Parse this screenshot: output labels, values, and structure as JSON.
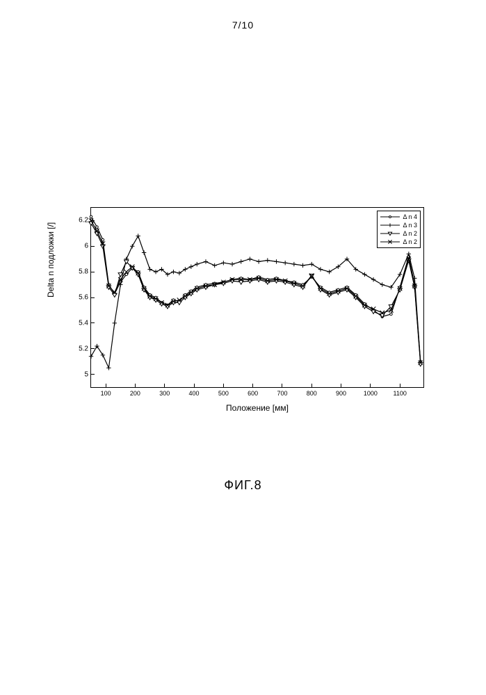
{
  "page_number": "7/10",
  "figure_caption": "ФИГ.8",
  "chart": {
    "type": "line",
    "xlabel": "Положение [мм]",
    "ylabel": "Delta n подложки [/]",
    "xlim": [
      50,
      1180
    ],
    "ylim": [
      4.9,
      6.3
    ],
    "xticks": [
      100,
      200,
      300,
      400,
      500,
      600,
      700,
      800,
      900,
      1000,
      1100
    ],
    "yticks": [
      5.0,
      5.2,
      5.4,
      5.6,
      5.8,
      6.0,
      6.2
    ],
    "ytick_labels": [
      "5",
      "5.2",
      "5.4",
      "5.6",
      "5.8",
      "6",
      "6.2"
    ],
    "background_color": "#ffffff",
    "axis_color": "#000000",
    "tick_fontsize": 10,
    "label_fontsize": 12,
    "line_width": 1.2,
    "marker_size": 3.2,
    "legend": {
      "position": "top-right",
      "border_color": "#000000",
      "fontsize": 9,
      "items": [
        {
          "label": "Δ n 4",
          "marker": "circle"
        },
        {
          "label": "Δ n 3",
          "marker": "plus"
        },
        {
          "label": "Δ n 2",
          "marker": "triangle-down"
        },
        {
          "label": "Δ n 2",
          "marker": "cross"
        }
      ]
    },
    "series": [
      {
        "name": "dn4",
        "marker": "circle",
        "color": "#000000",
        "x": [
          50,
          70,
          90,
          110,
          130,
          150,
          170,
          190,
          210,
          230,
          250,
          270,
          290,
          310,
          330,
          350,
          370,
          390,
          410,
          440,
          470,
          500,
          530,
          560,
          590,
          620,
          650,
          680,
          710,
          740,
          770,
          800,
          830,
          860,
          890,
          920,
          950,
          980,
          1010,
          1040,
          1070,
          1100,
          1130,
          1150,
          1170
        ],
        "y": [
          6.23,
          6.15,
          6.05,
          5.7,
          5.63,
          5.72,
          5.78,
          5.83,
          5.8,
          5.68,
          5.62,
          5.6,
          5.56,
          5.54,
          5.58,
          5.57,
          5.62,
          5.65,
          5.68,
          5.7,
          5.71,
          5.72,
          5.74,
          5.75,
          5.74,
          5.76,
          5.74,
          5.75,
          5.73,
          5.72,
          5.7,
          5.76,
          5.68,
          5.64,
          5.66,
          5.68,
          5.62,
          5.55,
          5.5,
          5.45,
          5.47,
          5.68,
          5.92,
          5.7,
          5.1
        ]
      },
      {
        "name": "dn3",
        "marker": "plus",
        "color": "#000000",
        "x": [
          50,
          70,
          90,
          110,
          130,
          150,
          170,
          190,
          210,
          230,
          250,
          270,
          290,
          310,
          330,
          350,
          370,
          390,
          410,
          440,
          470,
          500,
          530,
          560,
          590,
          620,
          650,
          680,
          710,
          740,
          770,
          800,
          830,
          860,
          890,
          920,
          950,
          980,
          1010,
          1040,
          1070,
          1100,
          1130,
          1150,
          1170
        ],
        "y": [
          5.14,
          5.22,
          5.15,
          5.05,
          5.4,
          5.7,
          5.9,
          6.0,
          6.08,
          5.95,
          5.82,
          5.8,
          5.82,
          5.78,
          5.8,
          5.79,
          5.82,
          5.84,
          5.86,
          5.88,
          5.85,
          5.87,
          5.86,
          5.88,
          5.9,
          5.88,
          5.89,
          5.88,
          5.87,
          5.86,
          5.85,
          5.86,
          5.82,
          5.8,
          5.84,
          5.9,
          5.82,
          5.78,
          5.74,
          5.7,
          5.68,
          5.78,
          5.94,
          5.75,
          5.09
        ]
      },
      {
        "name": "dn2a",
        "marker": "triangle-down",
        "color": "#000000",
        "x": [
          50,
          70,
          90,
          110,
          130,
          150,
          170,
          190,
          210,
          230,
          250,
          270,
          290,
          310,
          330,
          350,
          370,
          390,
          410,
          440,
          470,
          500,
          530,
          560,
          590,
          620,
          650,
          680,
          710,
          740,
          770,
          800,
          830,
          860,
          890,
          920,
          950,
          980,
          1010,
          1040,
          1070,
          1100,
          1130,
          1150,
          1170
        ],
        "y": [
          6.18,
          6.1,
          6.0,
          5.68,
          5.62,
          5.78,
          5.88,
          5.83,
          5.78,
          5.66,
          5.6,
          5.58,
          5.55,
          5.53,
          5.56,
          5.56,
          5.6,
          5.63,
          5.66,
          5.68,
          5.7,
          5.71,
          5.73,
          5.72,
          5.73,
          5.74,
          5.72,
          5.73,
          5.72,
          5.7,
          5.68,
          5.77,
          5.66,
          5.62,
          5.64,
          5.66,
          5.6,
          5.53,
          5.49,
          5.46,
          5.53,
          5.66,
          5.89,
          5.68,
          5.08
        ]
      },
      {
        "name": "dn2b",
        "marker": "cross",
        "color": "#000000",
        "x": [
          50,
          70,
          90,
          110,
          130,
          150,
          170,
          190,
          210,
          230,
          250,
          270,
          290,
          310,
          330,
          350,
          370,
          390,
          410,
          440,
          470,
          500,
          530,
          560,
          590,
          620,
          650,
          680,
          710,
          740,
          770,
          800,
          830,
          860,
          890,
          920,
          950,
          980,
          1010,
          1040,
          1070,
          1100,
          1130,
          1150,
          1170
        ],
        "y": [
          6.2,
          6.12,
          6.02,
          5.69,
          5.64,
          5.74,
          5.8,
          5.84,
          5.79,
          5.67,
          5.61,
          5.59,
          5.56,
          5.54,
          5.57,
          5.58,
          5.61,
          5.64,
          5.67,
          5.69,
          5.7,
          5.72,
          5.74,
          5.74,
          5.74,
          5.75,
          5.73,
          5.74,
          5.73,
          5.71,
          5.69,
          5.77,
          5.67,
          5.63,
          5.65,
          5.67,
          5.61,
          5.54,
          5.51,
          5.48,
          5.5,
          5.67,
          5.9,
          5.69,
          5.09
        ]
      }
    ]
  }
}
